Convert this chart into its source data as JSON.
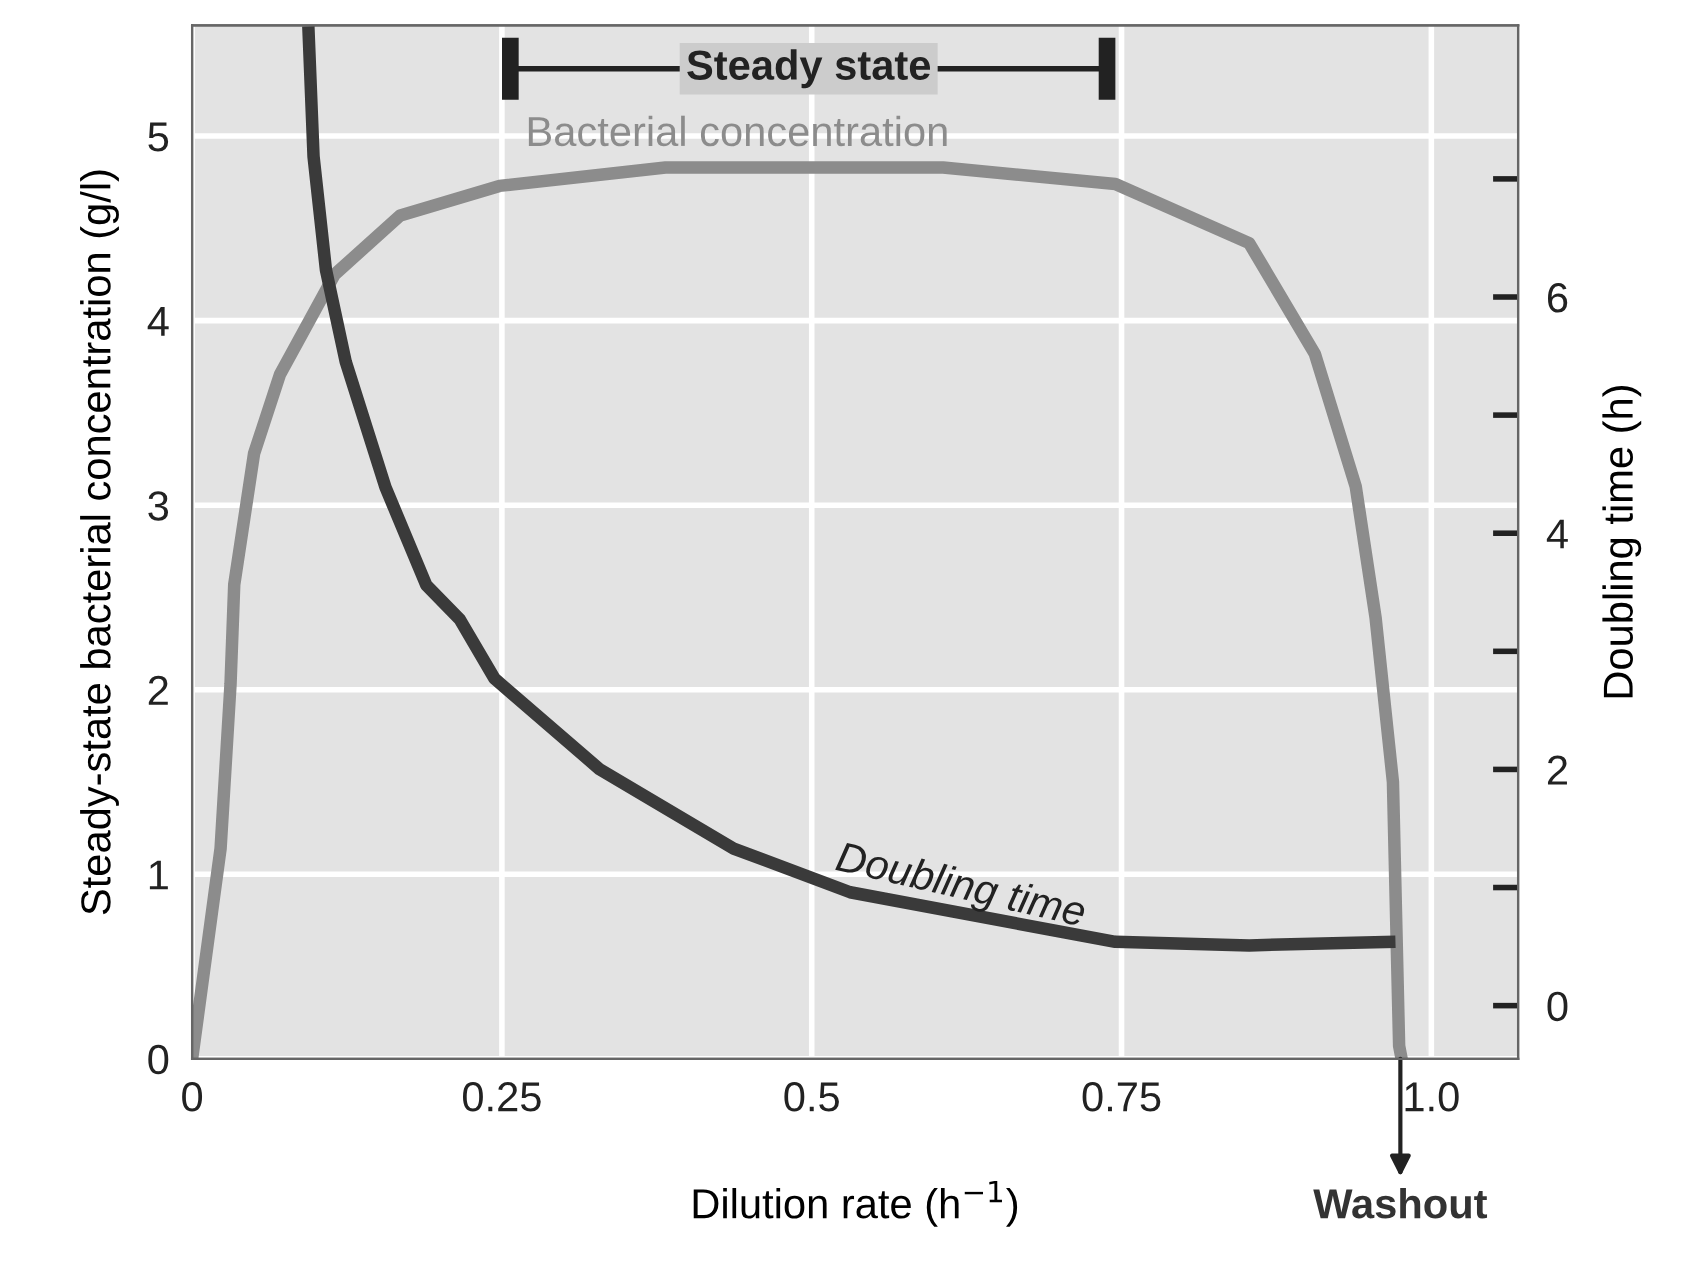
{
  "chart_data": {
    "type": "line",
    "xlabel": "Dilution rate (h$^{−1}$)",
    "ylabel": "Steady-state bacterial concentration (g/l)",
    "y2label": "Doubling time (h)",
    "series": [
      {
        "name": "Bacterial concentration",
        "color": "#8c8c8c",
        "x": [
          0,
          0.023,
          0.031,
          0.034,
          0.05,
          0.071,
          0.115,
          0.168,
          0.248,
          0.382,
          0.53,
          0.606,
          0.745,
          0.853,
          0.906,
          0.939,
          0.955,
          0.969,
          0.974,
          0.976
        ],
        "values": [
          0,
          1.14,
          2.03,
          2.57,
          3.28,
          3.71,
          4.25,
          4.57,
          4.73,
          4.83,
          4.83,
          4.83,
          4.74,
          4.42,
          3.82,
          3.1,
          2.39,
          1.5,
          0.07,
          0
        ]
      },
      {
        "name": "Doubling time",
        "color": "#3a3a3a",
        "axis": "y2",
        "x": [
          0.094,
          0.098,
          0.108,
          0.124,
          0.156,
          0.189,
          0.216,
          0.244,
          0.329,
          0.437,
          0.531,
          0.745,
          0.853,
          0.966
        ],
        "values": [
          8.24,
          7.19,
          6.23,
          5.45,
          4.39,
          3.56,
          3.27,
          2.77,
          2.0,
          1.33,
          0.96,
          0.54,
          0.51,
          0.54
        ]
      }
    ],
    "xlim": [
      0,
      1.07
    ],
    "xticks": [
      0,
      0.25,
      0.5,
      0.75,
      {
        "value": 1.0,
        "label": "1.0"
      }
    ],
    "ylim": [
      0,
      5.6
    ],
    "yticks": [
      0,
      1,
      2,
      3,
      4,
      5
    ],
    "y2lim": [
      -0.45,
      8.3
    ],
    "y2ticks": [
      0,
      {
        "value": 1,
        "label": null
      },
      2,
      {
        "value": 3,
        "label": null
      },
      4,
      {
        "value": 5,
        "label": null
      },
      6,
      {
        "value": 7,
        "label": null
      }
    ],
    "annotations": [
      "Steady state",
      {
        "text": "Washout",
        "x": 0.975,
        "y": 0
      }
    ],
    "grid": true,
    "legend": false,
    "marker": "none",
    "line_style": "solid"
  }
}
